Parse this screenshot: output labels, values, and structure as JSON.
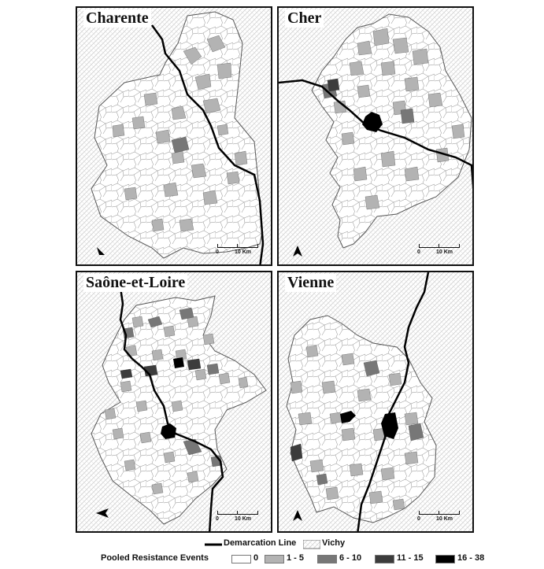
{
  "panels": [
    {
      "title": "Charente",
      "scale_zero": "0",
      "scale_label": "10 Km",
      "north": "N"
    },
    {
      "title": "Cher",
      "scale_zero": "0",
      "scale_label": "10 Km",
      "north": "N"
    },
    {
      "title": "Saône-et-Loire",
      "scale_zero": "0",
      "scale_label": "10 Km",
      "north": "N"
    },
    {
      "title": "Vienne",
      "scale_zero": "0",
      "scale_label": "10 Km",
      "north": "N"
    }
  ],
  "legend": {
    "demarcation_label": "Demarcation Line",
    "vichy_label": "Vichy",
    "events_title": "Pooled Resistance Events",
    "classes": [
      {
        "label": "0",
        "color": "#ffffff"
      },
      {
        "label": "1 - 5",
        "color": "#b3b3b3"
      },
      {
        "label": "6 - 10",
        "color": "#777777"
      },
      {
        "label": "11 - 15",
        "color": "#3c3c3c"
      },
      {
        "label": "16 - 38",
        "color": "#000000"
      }
    ]
  },
  "colors": {
    "border": "#111111",
    "commune_edge": "#888888",
    "hatch": "#cfcfcf"
  }
}
